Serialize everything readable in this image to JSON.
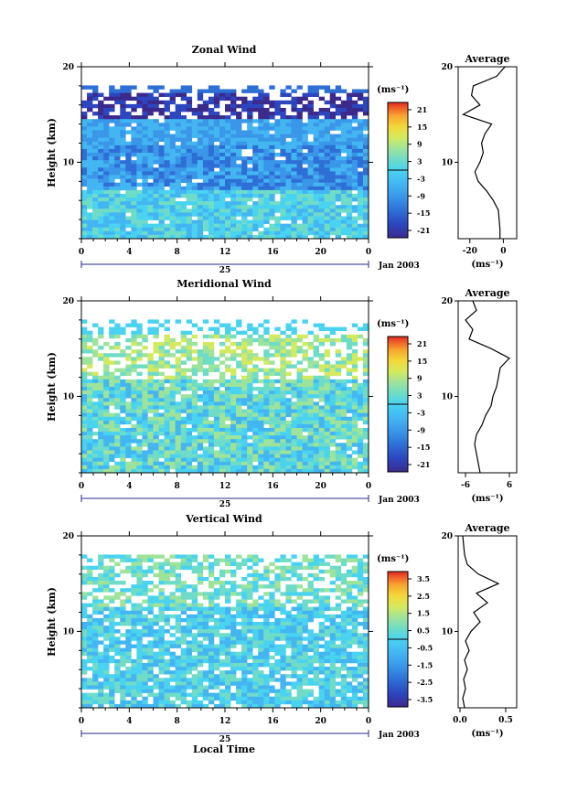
{
  "chart_data": [
    {
      "type": "heatmap",
      "title": "Zonal Wind",
      "ylabel": "Height (km)",
      "yticks": [
        "20",
        "10"
      ],
      "ylim": [
        2,
        20
      ],
      "xticks": [
        "0",
        "4",
        "8",
        "12",
        "16",
        "20",
        "0"
      ],
      "xlim": [
        0,
        24
      ],
      "date_label": "25",
      "date_right": "Jan 2003",
      "colorbar": {
        "unit": "(ms⁻¹)",
        "ticks": [
          "21",
          "15",
          "9",
          "3",
          "-3",
          "-9",
          "-15",
          "-21"
        ]
      },
      "profile": {
        "title": "Average",
        "unit": "(ms⁻¹)",
        "xticks": [
          "-20",
          "0"
        ],
        "xlim": [
          -27,
          8
        ],
        "yticks": [
          "20",
          "10"
        ],
        "heights": [
          2,
          3,
          4,
          5,
          6,
          7,
          8,
          9,
          10,
          11,
          12,
          13,
          14,
          15,
          16,
          17,
          18,
          19,
          20
        ],
        "values": [
          -2,
          -2,
          -2.5,
          -3,
          -6,
          -10,
          -15,
          -17,
          -14,
          -12,
          -13,
          -11,
          -7,
          -24,
          -14,
          -19,
          -18,
          -4,
          1
        ]
      }
    },
    {
      "type": "heatmap",
      "title": "Meridional Wind",
      "ylabel": "Height (km)",
      "yticks": [
        "20",
        "10"
      ],
      "ylim": [
        2,
        20
      ],
      "xticks": [
        "0",
        "4",
        "8",
        "12",
        "16",
        "20",
        "0"
      ],
      "xlim": [
        0,
        24
      ],
      "date_label": "25",
      "date_right": "Jan 2003",
      "colorbar": {
        "unit": "(ms⁻¹)",
        "ticks": [
          "21",
          "15",
          "9",
          "3",
          "-3",
          "-9",
          "-15",
          "-21"
        ]
      },
      "profile": {
        "title": "Average",
        "unit": "(ms⁻¹)",
        "xticks": [
          "-6",
          "6"
        ],
        "xlim": [
          -8,
          8
        ],
        "yticks": [
          "20",
          "10"
        ],
        "heights": [
          2,
          3,
          4,
          5,
          6,
          7,
          8,
          9,
          10,
          11,
          12,
          13,
          14,
          15,
          16,
          17,
          18,
          19,
          20
        ],
        "values": [
          -2,
          -2.5,
          -3,
          -3.5,
          -3,
          -1.5,
          -0.5,
          1,
          1.5,
          2.5,
          3,
          3.5,
          6,
          1,
          -5,
          -4,
          -6,
          -3,
          -4
        ]
      }
    },
    {
      "type": "heatmap",
      "title": "Vertical Wind",
      "ylabel": "Height (km)",
      "yticks": [
        "20",
        "10"
      ],
      "ylim": [
        2,
        20
      ],
      "xticks": [
        "0",
        "4",
        "8",
        "12",
        "16",
        "20",
        "0"
      ],
      "xlim": [
        0,
        24
      ],
      "xlabel": "Local Time",
      "date_label": "25",
      "date_right": "Jan 2003",
      "colorbar": {
        "unit": "(ms⁻¹)",
        "ticks": [
          "3.5",
          "2.5",
          "1.5",
          "0.5",
          "-0.5",
          "-1.5",
          "-2.5",
          "-3.5"
        ]
      },
      "profile": {
        "title": "Average",
        "unit": "(ms⁻¹)",
        "xticks": [
          "0.0",
          "0.5"
        ],
        "xlim": [
          -0.02,
          0.62
        ],
        "yticks": [
          "20",
          "10"
        ],
        "heights": [
          2,
          3,
          4,
          5,
          6,
          7,
          8,
          9,
          10,
          11,
          12,
          13,
          14,
          15,
          16,
          17,
          18,
          19,
          20
        ],
        "values": [
          0.05,
          0.03,
          0.06,
          0.04,
          0.08,
          0.05,
          0.1,
          0.06,
          0.12,
          0.22,
          0.15,
          0.3,
          0.18,
          0.42,
          0.2,
          0.08,
          0.05,
          0.04,
          0.03
        ]
      }
    }
  ],
  "palette": [
    "#3b2a8c",
    "#2c46c0",
    "#2e6fd6",
    "#3a96e8",
    "#43b6f2",
    "#49d3f0",
    "#6fdcc8",
    "#9ee39a",
    "#d4ea5e",
    "#f3d83a",
    "#f7a62f",
    "#f06a2a",
    "#e02a22"
  ]
}
